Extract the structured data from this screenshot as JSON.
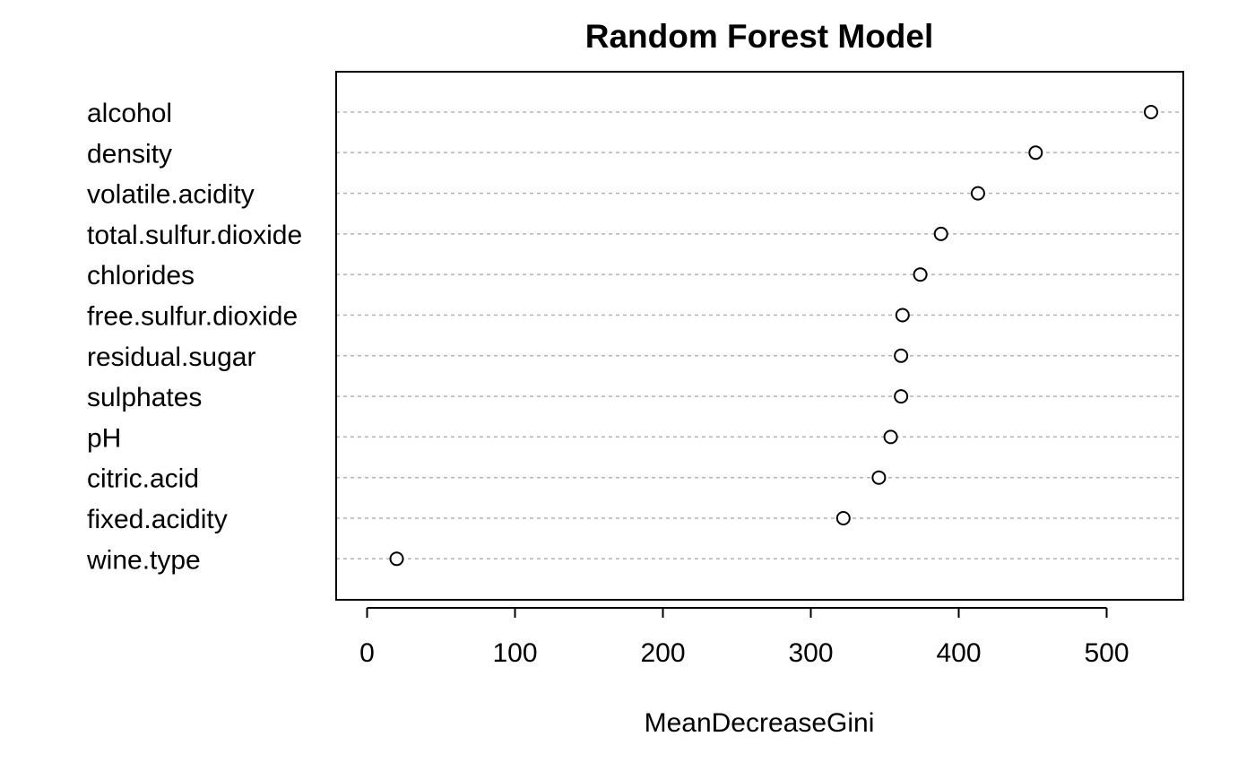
{
  "chart_data": {
    "type": "scatter",
    "subtype": "dotchart",
    "title": "Random Forest Model",
    "xlabel": "MeanDecreaseGini",
    "ylabel": "",
    "xlim": [
      -20,
      550
    ],
    "xticks": [
      0,
      100,
      200,
      300,
      400,
      500
    ],
    "grid": "horizontal dotted lines per variable",
    "categories": [
      "alcohol",
      "density",
      "volatile.acidity",
      "total.sulfur.dioxide",
      "chlorides",
      "free.sulfur.dioxide",
      "residual.sugar",
      "sulphates",
      "pH",
      "citric.acid",
      "fixed.acidity",
      "wine.type"
    ],
    "values": [
      530,
      452,
      413,
      388,
      374,
      362,
      361,
      361,
      354,
      346,
      322,
      20
    ]
  }
}
